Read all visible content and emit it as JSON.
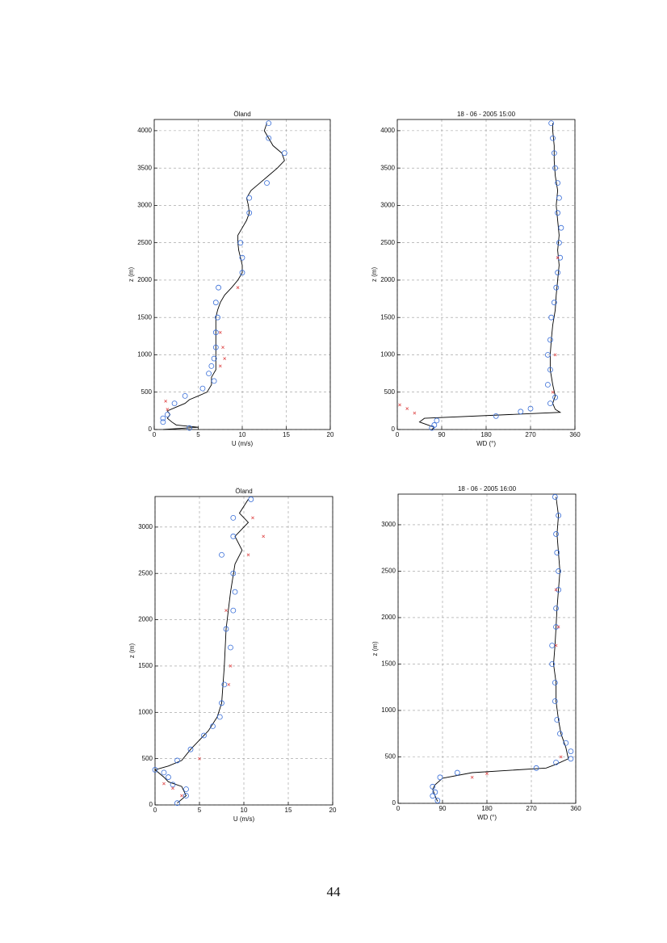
{
  "page_number": "44",
  "chart_data": [
    {
      "type": "line",
      "title": "Öland",
      "xlabel": "U  (m/s)",
      "ylabel": "z  (m)",
      "xlim": [
        0,
        20
      ],
      "xticks": [
        0,
        5,
        10,
        15,
        20
      ],
      "ylim": [
        0,
        4150
      ],
      "yticks": [
        0,
        500,
        1000,
        1500,
        2000,
        2500,
        3000,
        3500,
        4000
      ],
      "grid": true,
      "line": {
        "color": "#000000",
        "x": [
          1,
          5,
          2.5,
          2,
          1.5,
          1.8,
          1.5,
          2.5,
          3.5,
          4,
          5,
          6,
          6.5,
          6.5,
          7,
          7,
          7,
          7,
          7,
          7,
          7,
          7,
          7.2,
          7.5,
          8,
          8.8,
          9.5,
          10,
          10,
          9.8,
          9.6,
          9.5,
          9.5,
          10,
          10.5,
          10.8,
          10.7,
          10.5,
          11,
          12,
          13,
          14,
          14.8,
          14.5,
          13.5,
          13,
          12.5,
          12.8
        ],
        "y": [
          0,
          30,
          60,
          100,
          150,
          200,
          250,
          300,
          350,
          400,
          450,
          500,
          600,
          700,
          800,
          900,
          1000,
          1100,
          1200,
          1300,
          1400,
          1500,
          1600,
          1700,
          1800,
          1900,
          2000,
          2100,
          2200,
          2300,
          2400,
          2500,
          2600,
          2700,
          2800,
          2900,
          3000,
          3100,
          3200,
          3300,
          3400,
          3500,
          3600,
          3700,
          3800,
          3900,
          4000,
          4100
        ]
      },
      "circles": {
        "color": "#3a6fd8",
        "x": [
          4,
          1,
          1,
          1.5,
          2.3,
          3.5,
          5.5,
          6.8,
          6.2,
          6.5,
          6.8,
          7,
          7,
          7.2,
          7,
          7.3,
          10,
          10,
          9.8,
          10.8,
          10.8,
          12.8,
          14.8,
          13,
          13
        ],
        "y": [
          20,
          100,
          150,
          200,
          350,
          450,
          550,
          650,
          750,
          850,
          950,
          1100,
          1300,
          1500,
          1700,
          1900,
          2100,
          2300,
          2500,
          2900,
          3100,
          3300,
          3700,
          3900,
          4100
        ]
      },
      "crosses": {
        "color": "#e05050",
        "x": [
          1.3,
          1.5,
          7.5,
          8,
          7.8,
          9.5,
          7.5
        ],
        "y": [
          380,
          270,
          850,
          950,
          1100,
          1900,
          1300
        ]
      }
    },
    {
      "type": "line",
      "title": "18 - 06 - 2005        15:00",
      "xlabel": "WD (°)",
      "ylabel": "z  (m)",
      "xlim": [
        0,
        360
      ],
      "xticks": [
        0,
        90,
        180,
        270,
        360
      ],
      "ylim": [
        0,
        4150
      ],
      "yticks": [
        0,
        500,
        1000,
        1500,
        2000,
        2500,
        3000,
        3500,
        4000
      ],
      "grid": true,
      "line": {
        "color": "#000000",
        "x": [
          70,
          75,
          45,
          55,
          330,
          320,
          315,
          320,
          315,
          310,
          310,
          312,
          315,
          320,
          322,
          325,
          328,
          325,
          328,
          325,
          322,
          325,
          320,
          318,
          318,
          315,
          315
        ],
        "y": [
          0,
          30,
          100,
          150,
          230,
          270,
          350,
          450,
          600,
          800,
          1000,
          1200,
          1400,
          1600,
          1800,
          2000,
          2200,
          2400,
          2600,
          2800,
          3000,
          3200,
          3400,
          3600,
          3800,
          4000,
          4100
        ]
      },
      "circles": {
        "color": "#3a6fd8",
        "x": [
          70,
          75,
          80,
          200,
          250,
          270,
          310,
          320,
          305,
          310,
          305,
          310,
          312,
          318,
          322,
          325,
          330,
          328,
          332,
          325,
          328,
          325,
          320,
          318,
          315,
          312
        ],
        "y": [
          20,
          60,
          120,
          180,
          240,
          280,
          350,
          430,
          600,
          800,
          1000,
          1200,
          1500,
          1700,
          1900,
          2100,
          2300,
          2500,
          2700,
          2900,
          3100,
          3300,
          3500,
          3700,
          3900,
          4100
        ]
      },
      "crosses": {
        "color": "#e05050",
        "x": [
          5,
          20,
          35,
          325,
          320,
          315
        ],
        "y": [
          330,
          280,
          220,
          2300,
          1000,
          500
        ]
      }
    },
    {
      "type": "line",
      "title": "Öland",
      "xlabel": "U  (m/s)",
      "ylabel": "z  (m)",
      "xlim": [
        0,
        20
      ],
      "xticks": [
        0,
        5,
        10,
        15,
        20
      ],
      "ylim": [
        0,
        3330
      ],
      "yticks": [
        0,
        500,
        1000,
        1500,
        2000,
        2500,
        3000
      ],
      "grid": true,
      "line": {
        "color": "#000000",
        "x": [
          2.5,
          3.5,
          3,
          1.5,
          1,
          0,
          1.5,
          3,
          4,
          5,
          6,
          7,
          7.5,
          7.8,
          8,
          8.5,
          9,
          9.8,
          9,
          10.5,
          9.5,
          10.5
        ],
        "y": [
          20,
          100,
          200,
          250,
          300,
          380,
          420,
          480,
          600,
          700,
          800,
          950,
          1100,
          1500,
          1900,
          2300,
          2600,
          2750,
          2900,
          3050,
          3150,
          3300
        ]
      },
      "circles": {
        "color": "#3a6fd8",
        "x": [
          2.5,
          3.5,
          3.5,
          2,
          1.5,
          1,
          0,
          2.5,
          4,
          5.5,
          6.5,
          7.3,
          7.5,
          7.8,
          8.5,
          8,
          8.8,
          9,
          8.8,
          7.5,
          8.8,
          8.8,
          10.8
        ],
        "y": [
          20,
          100,
          170,
          220,
          300,
          350,
          380,
          480,
          600,
          750,
          850,
          950,
          1100,
          1300,
          1700,
          1900,
          2100,
          2300,
          2500,
          2700,
          2900,
          3100,
          3300
        ]
      },
      "crosses": {
        "color": "#e05050",
        "x": [
          1,
          2,
          3,
          5,
          8.3,
          8.5,
          11,
          12.2,
          10.5,
          8
        ],
        "y": [
          230,
          180,
          100,
          500,
          1300,
          1500,
          3100,
          2900,
          2700,
          2100
        ]
      }
    },
    {
      "type": "line",
      "title": "18 - 06 - 2005        16:00",
      "xlabel": "WD (°)",
      "ylabel": "z  (m)",
      "xlim": [
        0,
        360
      ],
      "xticks": [
        0,
        90,
        180,
        270,
        360
      ],
      "ylim": [
        0,
        3330
      ],
      "yticks": [
        0,
        500,
        1000,
        1500,
        2000,
        2500,
        3000
      ],
      "grid": true,
      "line": {
        "color": "#000000",
        "x": [
          80,
          75,
          70,
          75,
          90,
          150,
          300,
          320,
          345,
          340,
          330,
          325,
          320,
          320,
          315,
          318,
          320,
          322,
          325,
          328,
          325,
          322,
          325,
          320
        ],
        "y": [
          20,
          80,
          150,
          200,
          270,
          330,
          380,
          420,
          480,
          600,
          750,
          900,
          1100,
          1300,
          1500,
          1700,
          1900,
          2100,
          2300,
          2500,
          2700,
          2900,
          3100,
          3300
        ]
      },
      "circles": {
        "color": "#3a6fd8",
        "x": [
          80,
          70,
          75,
          70,
          85,
          120,
          280,
          320,
          350,
          350,
          340,
          328,
          322,
          318,
          318,
          312,
          312,
          320,
          320,
          325,
          325,
          322,
          320,
          325,
          318
        ],
        "y": [
          30,
          80,
          120,
          180,
          280,
          330,
          380,
          440,
          480,
          560,
          650,
          750,
          900,
          1100,
          1300,
          1500,
          1700,
          1900,
          2100,
          2300,
          2500,
          2700,
          2900,
          3100,
          3300
        ]
      },
      "crosses": {
        "color": "#e05050",
        "x": [
          150,
          180,
          330,
          320,
          325,
          320
        ],
        "y": [
          280,
          320,
          500,
          1700,
          1900,
          2300
        ]
      }
    }
  ]
}
